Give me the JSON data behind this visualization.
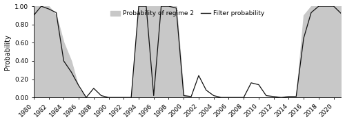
{
  "title": "",
  "ylabel": "Probability",
  "yticks": [
    0.0,
    0.2,
    0.4,
    0.6,
    0.8,
    1.0
  ],
  "xlim": [
    1980,
    2021
  ],
  "ylim": [
    0.0,
    1.05
  ],
  "fill_color": "#c8c8c8",
  "line_color": "#111111",
  "background_color": "#ffffff",
  "legend_labels": [
    "Probability of regime 2",
    "Filter probability"
  ],
  "years": [
    1980,
    1981,
    1982,
    1983,
    1984,
    1985,
    1986,
    1987,
    1988,
    1989,
    1990,
    1991,
    1992,
    1993,
    1994,
    1995,
    1996,
    1997,
    1998,
    1999,
    2000,
    2001,
    2002,
    2003,
    2004,
    2005,
    2006,
    2007,
    2008,
    2009,
    2010,
    2011,
    2012,
    2013,
    2014,
    2015,
    2016,
    2017,
    2018,
    2019,
    2020,
    2021
  ],
  "fill_prob": [
    1.0,
    1.0,
    1.0,
    0.9,
    0.6,
    0.4,
    0.1,
    0.0,
    0.0,
    0.0,
    0.0,
    0.0,
    0.0,
    0.0,
    1.0,
    1.0,
    1.0,
    1.0,
    1.0,
    1.0,
    0.03,
    0.0,
    0.0,
    0.0,
    0.0,
    0.0,
    0.0,
    0.0,
    0.0,
    0.0,
    0.0,
    0.0,
    0.0,
    0.0,
    0.0,
    0.0,
    0.9,
    1.0,
    1.0,
    1.0,
    1.0,
    1.0
  ],
  "filter_prob": [
    0.9,
    1.0,
    0.97,
    0.93,
    0.4,
    0.28,
    0.13,
    0.0,
    0.1,
    0.02,
    0.0,
    0.0,
    0.0,
    0.0,
    1.0,
    1.0,
    0.02,
    1.0,
    1.0,
    0.98,
    0.02,
    0.01,
    0.24,
    0.08,
    0.02,
    0.0,
    0.0,
    0.0,
    0.0,
    0.16,
    0.14,
    0.02,
    0.01,
    0.0,
    0.01,
    0.01,
    0.65,
    0.93,
    1.0,
    1.0,
    1.0,
    0.92
  ]
}
